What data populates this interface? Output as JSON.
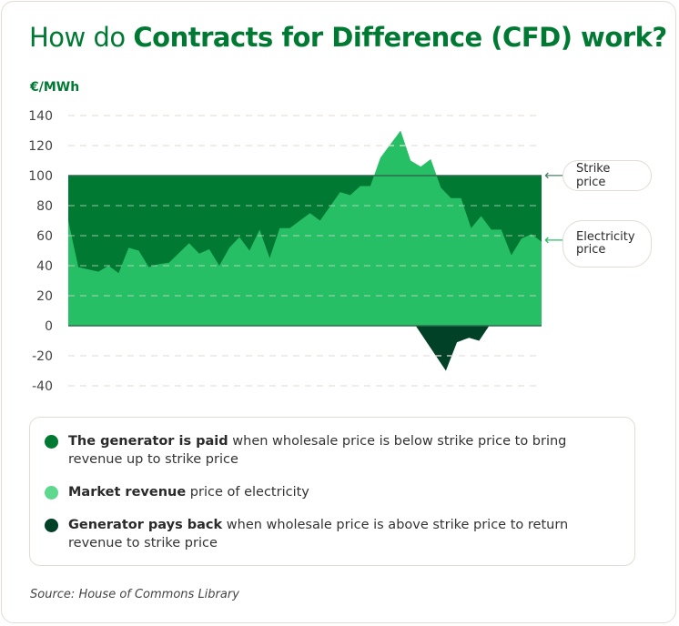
{
  "title": {
    "prefix": "How do ",
    "bold": "Contracts for Difference (CFD) work?"
  },
  "colors": {
    "generator_paid": "#007a33",
    "market_revenue": "#27bf65",
    "market_revenue_legend": "#5fd88f",
    "pays_back": "#004128",
    "title": "#007a33"
  },
  "chart_data": {
    "type": "area",
    "ylabel": "€/MWh",
    "ylim": [
      -40,
      140
    ],
    "yticks": [
      "140",
      "120",
      "100",
      "80",
      "60",
      "40",
      "20",
      "0",
      "-20",
      "-40"
    ],
    "ytick_values": [
      140,
      120,
      100,
      80,
      60,
      40,
      20,
      0,
      -20,
      -40
    ],
    "xlim": [
      0,
      47
    ],
    "grid": true,
    "strike_price": 100,
    "series": [
      {
        "name": "Electricity price",
        "x": [
          0,
          1,
          3,
          4,
          5,
          6,
          7,
          8,
          9,
          10,
          12,
          13,
          14,
          15,
          16,
          17,
          18,
          19,
          20,
          21,
          22,
          23,
          24,
          25,
          27,
          28,
          29,
          30,
          31,
          33,
          34,
          35,
          36,
          37,
          38,
          39,
          40,
          41,
          42,
          43,
          44,
          45,
          46,
          47
        ],
        "values": [
          70,
          39,
          36,
          40,
          35,
          52,
          50,
          39,
          41,
          42,
          55,
          48,
          51,
          40,
          52,
          59,
          50,
          64,
          45,
          65,
          65,
          70,
          75,
          70,
          89,
          87,
          93,
          93,
          112,
          130,
          110,
          106,
          111,
          92,
          85,
          85,
          65,
          73,
          64,
          64,
          47,
          58,
          61,
          56
        ]
      },
      {
        "name": "Generator pays back",
        "x": [
          34.5,
          37.5,
          38.6,
          39.8,
          40.8,
          41.8
        ],
        "values": [
          0,
          -30,
          -11,
          -8,
          -10,
          0
        ]
      }
    ],
    "annotations": [
      "Strike price",
      "Electricity price"
    ]
  },
  "legend": [
    {
      "bold": "The generator is paid",
      "text": " when wholesale price is below strike price to bring revenue up to strike price"
    },
    {
      "bold": "Market revenue",
      "text": " price of electricity"
    },
    {
      "bold": "Generator pays back",
      "text": " when wholesale price is above strike price to return revenue to strike price"
    }
  ],
  "source": "Source: House of Commons Library"
}
